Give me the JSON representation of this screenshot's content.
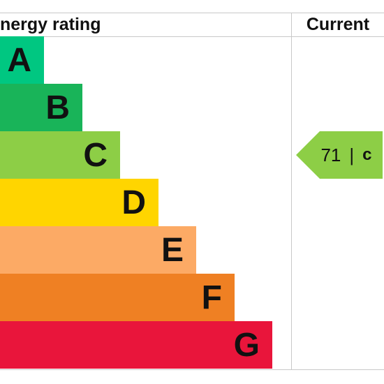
{
  "header": {
    "rating_label": "nergy rating",
    "current_label": "Current"
  },
  "chart_data": {
    "type": "bar",
    "categories": [
      "A",
      "B",
      "C",
      "D",
      "E",
      "F",
      "G"
    ],
    "colors": [
      "#00c781",
      "#19b459",
      "#8dce46",
      "#ffd500",
      "#fcaa65",
      "#ef8023",
      "#e9153b"
    ],
    "current": {
      "value": "71",
      "band": "c",
      "separator": "|",
      "color": "#8dce46"
    }
  }
}
